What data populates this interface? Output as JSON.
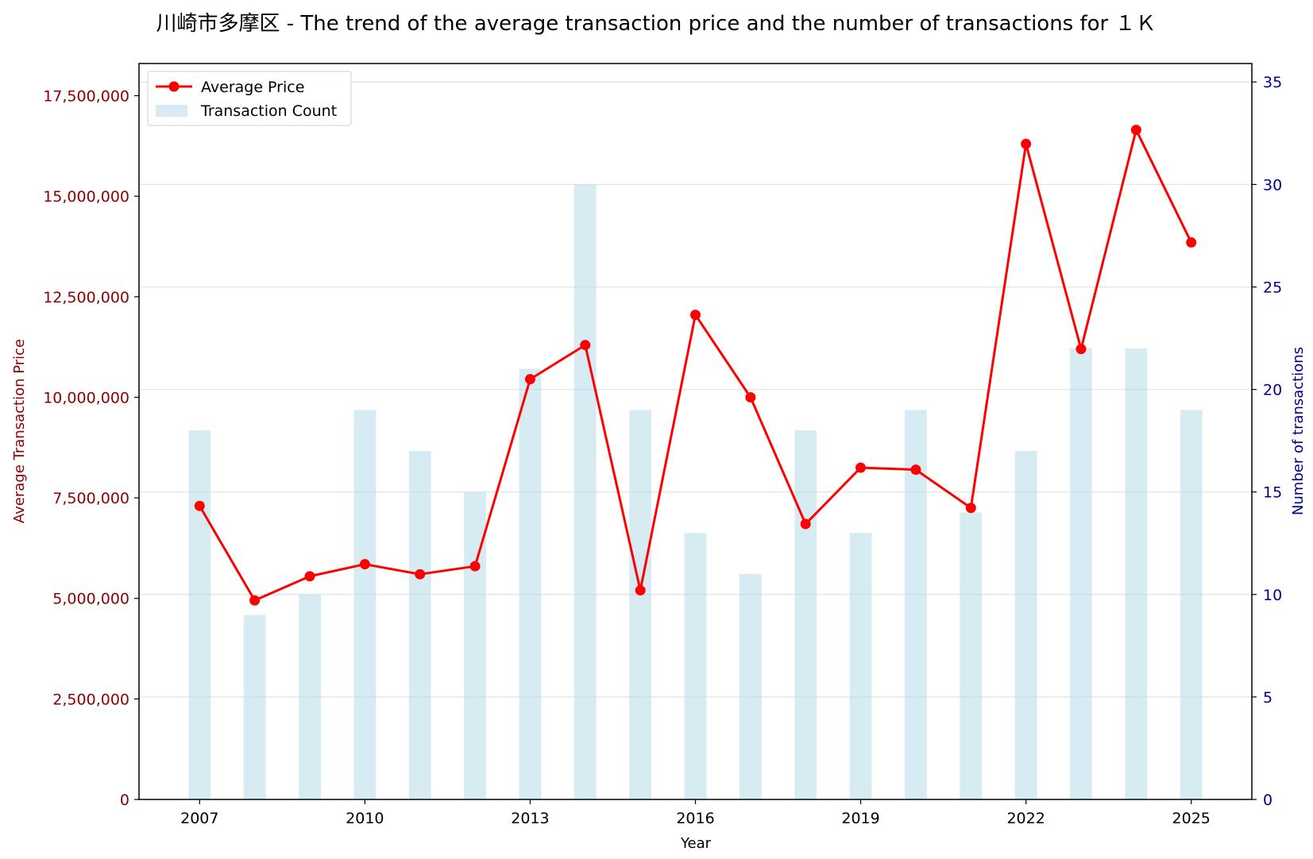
{
  "chart_data": {
    "type": "bar",
    "title": "川崎市多摩区 - The trend of the average transaction price and the number of transactions for １Ｋ",
    "xlabel": "Year",
    "ylabel_left": "Average Transaction Price",
    "ylabel_right": "Number of transactions",
    "x": [
      2007,
      2008,
      2009,
      2010,
      2011,
      2012,
      2013,
      2014,
      2015,
      2016,
      2017,
      2018,
      2019,
      2020,
      2021,
      2022,
      2023,
      2024,
      2025
    ],
    "x_ticks": [
      "2007",
      "2010",
      "2013",
      "2016",
      "2019",
      "2022",
      "2025"
    ],
    "xlim": [
      2005.9,
      2026.1
    ],
    "series": [
      {
        "name": "Average Price",
        "type": "line",
        "axis": "left",
        "color": "#ff0000",
        "values": [
          7300000,
          4950000,
          5550000,
          5850000,
          5600000,
          5800000,
          10450000,
          11300000,
          5200000,
          12050000,
          10000000,
          6850000,
          8250000,
          8200000,
          7250000,
          16300000,
          11200000,
          16650000,
          13850000
        ]
      },
      {
        "name": "Transaction Count",
        "type": "bar",
        "axis": "right",
        "color": "#add8e6",
        "values": [
          18,
          9,
          10,
          19,
          17,
          15,
          21,
          30,
          19,
          13,
          11,
          18,
          13,
          19,
          14,
          17,
          22,
          22,
          19
        ]
      }
    ],
    "y_left": {
      "lim": [
        0,
        18300000
      ],
      "ticks": [
        0,
        2500000,
        5000000,
        7500000,
        10000000,
        12500000,
        15000000,
        17500000
      ],
      "tick_labels": [
        "0",
        "2,500,000",
        "5,000,000",
        "7,500,000",
        "10,000,000",
        "12,500,000",
        "15,000,000",
        "17,500,000"
      ]
    },
    "y_right": {
      "lim": [
        0,
        35.9
      ],
      "ticks": [
        0,
        5,
        10,
        15,
        20,
        25,
        30,
        35
      ],
      "tick_labels": [
        "0",
        "5",
        "10",
        "15",
        "20",
        "25",
        "30",
        "35"
      ]
    },
    "grid": "horizontal",
    "legend_placement": "top-left"
  }
}
